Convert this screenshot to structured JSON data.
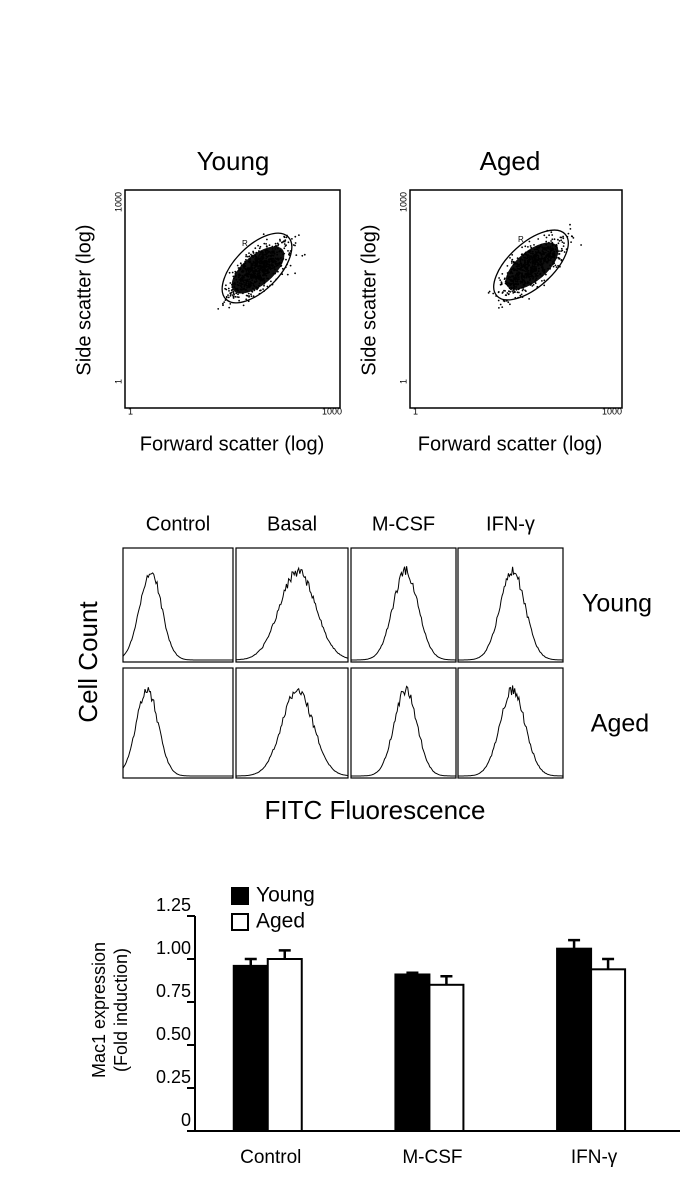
{
  "panel_a": {
    "titles": [
      "Young",
      "Aged"
    ],
    "x_label": "Forward scatter (log)",
    "y_label": "Side scatter (log)",
    "axis_min_label": "1",
    "axis_max_label": "1000",
    "gate_label": "R"
  },
  "panel_b": {
    "columns": [
      "Control",
      "Basal",
      "M-CSF",
      "IFN-γ"
    ],
    "rows": [
      "Young",
      "Aged"
    ],
    "y_label": "Cell Count",
    "x_label": "FITC Fluorescence"
  },
  "chart_data": {
    "type": "bar",
    "ylabel": [
      "Mac1 expression",
      "(Fold induction)"
    ],
    "categories": [
      "Control",
      "M-CSF",
      "IFN-γ"
    ],
    "series": [
      {
        "name": "Young",
        "color": "#000000",
        "values": [
          0.96,
          0.91,
          1.06
        ],
        "errors": [
          0.04,
          0.01,
          0.05
        ]
      },
      {
        "name": "Aged",
        "color": "#ffffff",
        "values": [
          1.0,
          0.85,
          0.94
        ],
        "errors": [
          0.05,
          0.05,
          0.06
        ]
      }
    ],
    "ylim": [
      0,
      1.25
    ],
    "yticks": [
      0,
      0.25,
      {
        "value": 0.5,
        "label": "0.50"
      },
      0.75,
      {
        "value": 1,
        "label": "1.00"
      },
      1.25
    ],
    "legend": "top-left"
  }
}
